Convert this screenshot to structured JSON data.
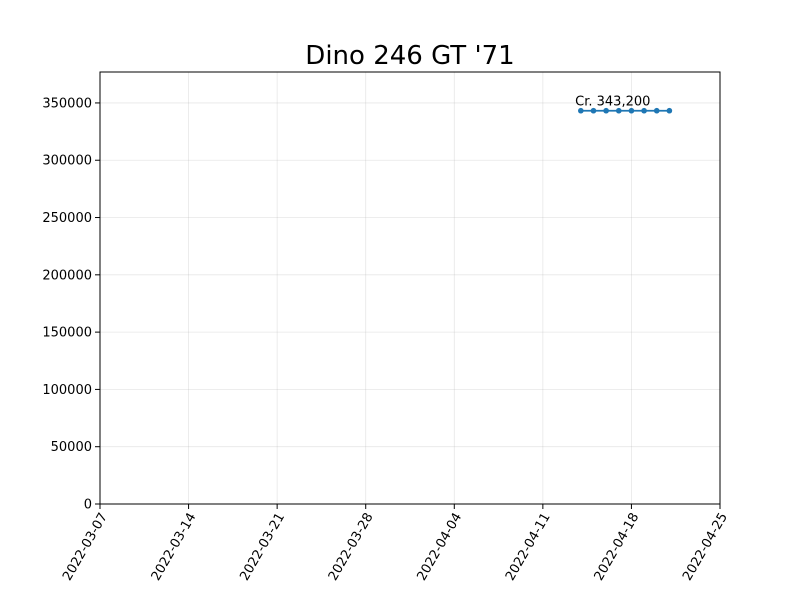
{
  "chart_data": {
    "type": "line",
    "title": "Dino 246 GT '71",
    "xlabel": "",
    "ylabel": "",
    "x_axis_kind": "date",
    "xlim": [
      "2022-03-07",
      "2022-04-25"
    ],
    "ylim": [
      0,
      377000
    ],
    "x_ticks": [
      "2022-03-07",
      "2022-03-14",
      "2022-03-21",
      "2022-03-28",
      "2022-04-04",
      "2022-04-11",
      "2022-04-18",
      "2022-04-25"
    ],
    "y_ticks": [
      0,
      50000,
      100000,
      150000,
      200000,
      250000,
      300000,
      350000
    ],
    "y_tick_labels": [
      "0",
      "50000",
      "100000",
      "150000",
      "200000",
      "250000",
      "300000",
      "350000"
    ],
    "grid": true,
    "legend": "none",
    "series": [
      {
        "color": "#1f77b4",
        "marker": "circle",
        "x": [
          "2022-04-14",
          "2022-04-15",
          "2022-04-16",
          "2022-04-17",
          "2022-04-18",
          "2022-04-19",
          "2022-04-20",
          "2022-04-21"
        ],
        "values": [
          343200,
          343200,
          343200,
          343200,
          343200,
          343200,
          343200,
          343200
        ]
      }
    ],
    "annotations": [
      {
        "text": "Cr. 343,200",
        "x": "2022-04-17",
        "y": 343200
      }
    ]
  }
}
